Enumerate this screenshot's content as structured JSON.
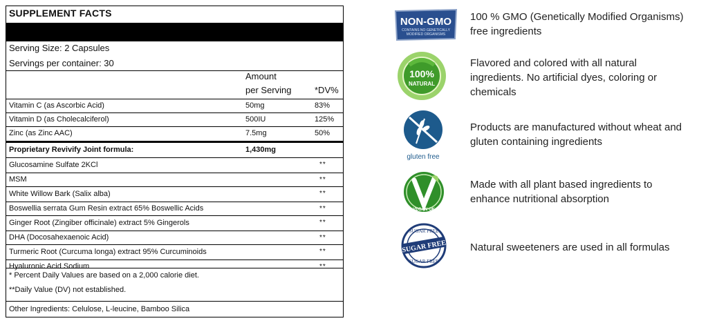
{
  "facts": {
    "title": "SUPPLEMENT FACTS",
    "serving_size": "Serving Size: 2 Capsules",
    "servings_per_container": "Servings per container:  30",
    "amount_header_1": "Amount",
    "amount_header_2": "per Serving",
    "dv_header": "*DV%",
    "vitamins": [
      {
        "name": "Vitamin C (as Ascorbic Acid)",
        "amount": "50mg",
        "dv": "83%"
      },
      {
        "name": "Vitamin D (as Cholecalciferol)",
        "amount": "500IU",
        "dv": "125%"
      },
      {
        "name": "Zinc (as Zinc AAC)",
        "amount": "7.5mg",
        "dv": "50%"
      }
    ],
    "blend_name": "Proprietary Revivify Joint formula:",
    "blend_amount": "1,430mg",
    "blend_items": [
      {
        "name": "Glucosamine Sulfate 2KCl",
        "dv": "**"
      },
      {
        "name": "MSM",
        "dv": "**"
      },
      {
        "name": "White Willow Bark (Salix alba)",
        "dv": "**"
      },
      {
        "name": "Boswellia serrata Gum Resin extract 65% Boswellic Acids",
        "dv": "**"
      },
      {
        "name": "Ginger Root (Zingiber officinale) extract 5% Gingerols",
        "dv": "**"
      },
      {
        "name": "DHA (Docosahexaenoic Acid)",
        "dv": "**"
      },
      {
        "name": "Turmeric Root (Curcuma longa) extract 95% Curcuminoids",
        "dv": "**"
      },
      {
        "name": "Hyaluronic Acid Sodium",
        "dv": "**"
      }
    ],
    "note1": "* Percent Daily Values are based on a 2,000 calorie diet.",
    "note2": "**Daily Value (DV) not established.",
    "other_ingredients": "Other Ingredients:  Celulose, L-leucine, Bamboo Silica"
  },
  "features": [
    {
      "icon": "non-gmo-icon",
      "badge_text": "NON-GMO",
      "badge_sub1": "CONTAINS NO GENETICALLY",
      "badge_sub2": "MODIFIED ORGANISMS",
      "line1": "100 % GMO (Genetically Modified Organisms)",
      "line2": "free ingredients",
      "line3": ""
    },
    {
      "icon": "natural-icon",
      "badge_text": "100%",
      "badge_sub1": "NATURAL",
      "line1": "Flavored and colored with all natural",
      "line2": "ingredients.  No artificial dyes, coloring or",
      "line3": "chemicals"
    },
    {
      "icon": "gluten-free-icon",
      "badge_sub1": "gluten free",
      "line1": "Products are manufactured without wheat and",
      "line2": "gluten containing ingredients",
      "line3": ""
    },
    {
      "icon": "vegan-icon",
      "badge_sub1": "VEGAN OK",
      "line1": "Made with all plant based ingredients to",
      "line2": "enhance nutritional absorption",
      "line3": ""
    },
    {
      "icon": "sugar-free-icon",
      "badge_text": "SUGAR FREE",
      "badge_sub1": "SUGAR FREE",
      "line1": "Natural sweeteners are used in all formulas",
      "line2": "",
      "line3": ""
    }
  ],
  "colors": {
    "non_gmo_blue": "#2a4f8f",
    "natural_green": "#3f9b2a",
    "gluten_blue": "#1d5a8c",
    "vegan_green": "#2f8f2a",
    "sugar_blue": "#1f3c78"
  }
}
